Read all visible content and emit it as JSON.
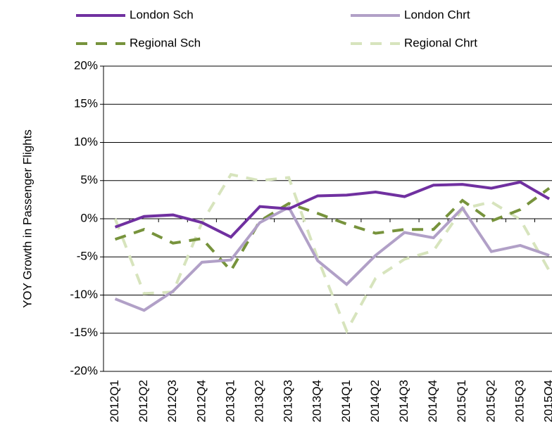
{
  "chart_data": {
    "type": "line",
    "y_label": "YOY Growth in Passenger Flights",
    "categories": [
      "2012Q1",
      "2012Q2",
      "2012Q3",
      "2012Q4",
      "2013Q1",
      "2013Q2",
      "2013Q3",
      "2013Q4",
      "2014Q1",
      "2014Q2",
      "2014Q3",
      "2014Q4",
      "2015Q1",
      "2015Q2",
      "2015Q3",
      "2015Q4"
    ],
    "series": [
      {
        "name": "London Sch",
        "color": "#7030a0",
        "dashed": false,
        "values": [
          -1.1,
          0.3,
          0.5,
          -0.5,
          -2.4,
          1.6,
          1.3,
          3.0,
          3.1,
          3.5,
          2.9,
          4.4,
          4.5,
          4.0,
          4.8,
          2.6
        ]
      },
      {
        "name": "London Chrt",
        "color": "#b1a0c7",
        "dashed": false,
        "values": [
          -10.5,
          -12,
          -9.5,
          -5.7,
          -5.4,
          -0.5,
          1.5,
          -5.5,
          -8.6,
          -4.8,
          -1.8,
          -2.5,
          1.4,
          -4.3,
          -3.5,
          -4.8
        ]
      },
      {
        "name": "Regional Sch",
        "color": "#77933c",
        "dashed": true,
        "values": [
          -2.7,
          -1.4,
          -3.2,
          -2.6,
          -6.8,
          -0.3,
          2.0,
          0.7,
          -0.7,
          -1.9,
          -1.4,
          -1.4,
          2.4,
          -0.3,
          1.2,
          4.0
        ]
      },
      {
        "name": "Regional Chrt",
        "color": "#d7e4bd",
        "dashed": true,
        "values": [
          0,
          -9.8,
          -9.6,
          -0.5,
          5.8,
          5.0,
          5.4,
          -5.2,
          -14.7,
          -7.8,
          -5.3,
          -4.2,
          1.3,
          2.2,
          -0.1,
          -6.8
        ]
      }
    ],
    "ylim": [
      -20,
      20
    ],
    "yticks": [
      {
        "value": -20,
        "label": "-20%"
      },
      {
        "value": -15,
        "label": "-15%"
      },
      {
        "value": -10,
        "label": "-10%"
      },
      {
        "value": -5,
        "label": "-5%"
      },
      {
        "value": 0,
        "label": "0%"
      },
      {
        "value": 5,
        "label": "5%"
      },
      {
        "value": 10,
        "label": "10%"
      },
      {
        "value": 15,
        "label": "15%"
      },
      {
        "value": 20,
        "label": "20%"
      }
    ],
    "grid": true,
    "legend": "top"
  }
}
